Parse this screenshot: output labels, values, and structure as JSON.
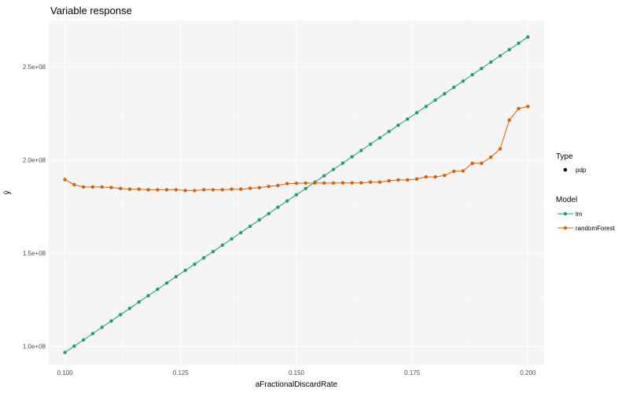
{
  "chart_data": {
    "type": "line",
    "title": "Variable response",
    "xlabel": "aFractionalDiscardRate",
    "ylabel": "ŷ",
    "xlim": [
      0.0965,
      0.2035
    ],
    "ylim": [
      90000000,
      275000000
    ],
    "x_ticks": [
      0.1,
      0.125,
      0.15,
      0.175,
      0.2
    ],
    "x_tick_labels": [
      "0.100",
      "0.125",
      "0.150",
      "0.175",
      "0.200"
    ],
    "y_ticks": [
      100000000,
      150000000,
      200000000,
      250000000
    ],
    "y_tick_labels": [
      "1.0e+08",
      "1.5e+08",
      "2.0e+08",
      "2.5e+08"
    ],
    "grid": true,
    "legend": {
      "placement": "right",
      "type_title": "Type",
      "type_items": [
        {
          "label": "pdp"
        }
      ],
      "model_title": "Model"
    },
    "series": [
      {
        "name": "lm",
        "color": "#1b9e77",
        "x_start": 0.1,
        "x_step": 0.002,
        "values": [
          96600000,
          100000000,
          103300000,
          106700000,
          110100000,
          113500000,
          116900000,
          120300000,
          123700000,
          127100000,
          130500000,
          133900000,
          137300000,
          140700000,
          144000000,
          147400000,
          150800000,
          154200000,
          157600000,
          161000000,
          164400000,
          167800000,
          171200000,
          174600000,
          178000000,
          181300000,
          184700000,
          188100000,
          191500000,
          194900000,
          198300000,
          201700000,
          205100000,
          208500000,
          211900000,
          215300000,
          218700000,
          222000000,
          225400000,
          228800000,
          232200000,
          235600000,
          239000000,
          242400000,
          245800000,
          249200000,
          252600000,
          256000000,
          259300000,
          262700000,
          266100000
        ]
      },
      {
        "name": "randomForest",
        "color": "#d95f02",
        "x_start": 0.1,
        "x_step": 0.002,
        "values": [
          189500000,
          186700000,
          185500000,
          185500000,
          185500000,
          185200000,
          184700000,
          184300000,
          184300000,
          184000000,
          184000000,
          184000000,
          184000000,
          183600000,
          183600000,
          184000000,
          184000000,
          184000000,
          184300000,
          184300000,
          184800000,
          185100000,
          185800000,
          186300000,
          187300000,
          187500000,
          187600000,
          187600000,
          187600000,
          187600000,
          187700000,
          187700000,
          187700000,
          188100000,
          188100000,
          188800000,
          189300000,
          189300000,
          189800000,
          190900000,
          190900000,
          191700000,
          193900000,
          194100000,
          198200000,
          198200000,
          201500000,
          206000000,
          221400000,
          227600000,
          228800000
        ]
      }
    ]
  }
}
